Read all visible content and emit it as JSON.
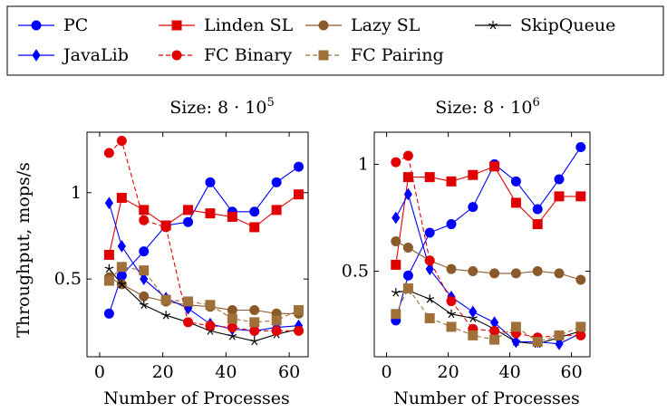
{
  "legend": {
    "placement": "top",
    "entries": [
      {
        "name": "PC",
        "color": "#0000ff",
        "marker": "circle",
        "dash": "solid"
      },
      {
        "name": "Linden SL",
        "color": "#e00000",
        "marker": "square",
        "dash": "solid"
      },
      {
        "name": "Lazy SL",
        "color": "#8b5a2b",
        "marker": "circle",
        "dash": "solid"
      },
      {
        "name": "SkipQueue",
        "color": "#000000",
        "marker": "star",
        "dash": "solid"
      },
      {
        "name": "JavaLib",
        "color": "#0000ff",
        "marker": "diamond",
        "dash": "solid"
      },
      {
        "name": "FC Binary",
        "color": "#e00000",
        "marker": "circle",
        "dash": "dashed"
      },
      {
        "name": "FC Pairing",
        "color": "#a0703a",
        "marker": "square",
        "dash": "dashed"
      }
    ]
  },
  "chart_data": [
    {
      "type": "line",
      "title": "Size: 8 · 10⁵",
      "xlabel": "Number of Processes",
      "ylabel": "Throughput, mops/s",
      "xlim": [
        -4,
        66
      ],
      "ylim": [
        0.05,
        1.35
      ],
      "xticks": [
        0,
        20,
        40,
        60
      ],
      "yticks": [
        0.5,
        1
      ],
      "ytick_labels": [
        "0.5",
        "1"
      ],
      "grid": false,
      "x": [
        3,
        7,
        14,
        21,
        28,
        35,
        42,
        49,
        56,
        63
      ],
      "series": [
        {
          "name": "PC",
          "values": [
            0.3,
            0.52,
            0.66,
            0.81,
            0.83,
            1.06,
            0.89,
            0.89,
            1.06,
            1.15
          ]
        },
        {
          "name": "Linden SL",
          "values": [
            0.64,
            0.97,
            0.9,
            0.81,
            0.9,
            0.88,
            0.86,
            0.8,
            0.9,
            0.99
          ]
        },
        {
          "name": "Lazy SL",
          "values": [
            0.51,
            0.47,
            0.4,
            0.37,
            0.35,
            0.34,
            0.32,
            0.32,
            0.3,
            0.3
          ]
        },
        {
          "name": "SkipQueue",
          "values": [
            0.56,
            0.47,
            0.35,
            0.29,
            0.25,
            0.2,
            0.17,
            0.14,
            0.18,
            0.21
          ]
        },
        {
          "name": "JavaLib",
          "values": [
            0.94,
            0.69,
            0.5,
            0.39,
            0.33,
            0.24,
            0.21,
            0.2,
            0.22,
            0.23
          ]
        },
        {
          "name": "FC Binary",
          "values": [
            1.23,
            1.3,
            0.84,
            0.8,
            0.25,
            0.23,
            0.22,
            0.2,
            0.2,
            0.2
          ]
        },
        {
          "name": "FC Pairing",
          "values": [
            0.49,
            0.57,
            0.55,
            0.38,
            0.37,
            0.35,
            0.27,
            0.25,
            0.26,
            0.32
          ]
        }
      ]
    },
    {
      "type": "line",
      "title": "Size: 8 · 10⁶",
      "xlabel": "Number of Processes",
      "ylabel": "",
      "xlim": [
        -4,
        66
      ],
      "ylim": [
        0.1,
        1.15
      ],
      "xticks": [
        0,
        20,
        40,
        60
      ],
      "yticks": [
        0.5,
        1
      ],
      "ytick_labels": [
        "0.5",
        "1"
      ],
      "grid": false,
      "x": [
        3,
        7,
        14,
        21,
        28,
        35,
        42,
        49,
        56,
        63
      ],
      "series": [
        {
          "name": "PC",
          "values": [
            0.27,
            0.48,
            0.68,
            0.72,
            0.8,
            1.0,
            0.92,
            0.79,
            0.93,
            1.08
          ]
        },
        {
          "name": "Linden SL",
          "values": [
            0.53,
            0.94,
            0.94,
            0.92,
            0.95,
            0.99,
            0.82,
            0.72,
            0.85,
            0.85
          ]
        },
        {
          "name": "Lazy SL",
          "values": [
            0.64,
            0.61,
            0.55,
            0.51,
            0.5,
            0.49,
            0.49,
            0.5,
            0.49,
            0.46
          ]
        },
        {
          "name": "SkipQueue",
          "values": [
            0.4,
            0.41,
            0.37,
            0.3,
            0.28,
            0.23,
            0.17,
            0.16,
            0.19,
            0.22
          ]
        },
        {
          "name": "JavaLib",
          "values": [
            0.75,
            0.86,
            0.51,
            0.38,
            0.31,
            0.26,
            0.17,
            0.17,
            0.16,
            0.21
          ]
        },
        {
          "name": "FC Binary",
          "values": [
            1.01,
            1.04,
            0.55,
            0.36,
            0.23,
            0.22,
            0.21,
            0.19,
            0.2,
            0.2
          ]
        },
        {
          "name": "FC Pairing",
          "values": [
            0.3,
            0.42,
            0.28,
            0.24,
            0.2,
            0.18,
            0.24,
            0.17,
            0.2,
            0.24
          ]
        }
      ]
    }
  ]
}
